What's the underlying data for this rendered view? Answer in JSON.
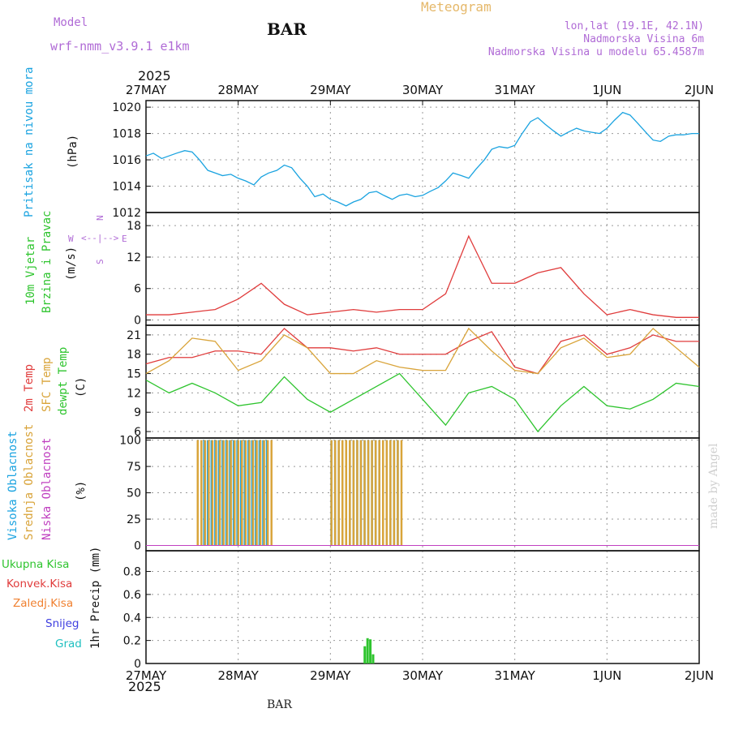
{
  "header": {
    "model_label": "Model",
    "model_name": "wrf-nmm_v3.9.1  e1km",
    "title": "BAR",
    "meteogram": "Meteogram",
    "lonlat": "lon,lat (19.1E, 42.1N)",
    "altitude": "Nadmorska Visina 6m",
    "model_altitude": "Nadmorska Visina u modelu 65.4587m",
    "year": "2025",
    "footer_station": "BAR",
    "credit": "made by Angel"
  },
  "colors": {
    "pressure": "#1aa3e0",
    "temp2m": "#e03c3c",
    "sfc": "#d9a43a",
    "dewpt": "#2ec42e",
    "high_cloud": "#1aa3e0",
    "mid_cloud": "#d9a43a",
    "low_cloud": "#c040c0",
    "total_precip": "#2ec42e",
    "conv_precip": "#e03c3c",
    "freezing": "#f08030",
    "snow": "#4040e0",
    "hail": "#20c0c0",
    "wind_speed": "#e03c3c"
  },
  "chart_data": [
    {
      "type": "line",
      "panel": "pressure",
      "ylabel_name": "Pritisak na nivou mora",
      "ylabel_unit": "(hPa)",
      "x_ticks": [
        "27MAY",
        "28MAY",
        "29MAY",
        "30MAY",
        "31MAY",
        "1JUN",
        "2JUN"
      ],
      "ylim": [
        1012,
        1020.5
      ],
      "yticks": [
        1012,
        1014,
        1016,
        1018,
        1020
      ],
      "grid": true,
      "series": [
        {
          "x": [
            0,
            0.08,
            0.17,
            0.25,
            0.33,
            0.42,
            0.5,
            0.58,
            0.67,
            0.75,
            0.83,
            0.92,
            1.0,
            1.08,
            1.17,
            1.25,
            1.33,
            1.42,
            1.5,
            1.58,
            1.67,
            1.75,
            1.83,
            1.92,
            2.0,
            2.08,
            2.17,
            2.25,
            2.33,
            2.42,
            2.5,
            2.58,
            2.67,
            2.75,
            2.83,
            2.92,
            3.0,
            3.08,
            3.17,
            3.25,
            3.33,
            3.42,
            3.5,
            3.58,
            3.67,
            3.75,
            3.83,
            3.92,
            4.0,
            4.08,
            4.17,
            4.25,
            4.33,
            4.42,
            4.5,
            4.58,
            4.67,
            4.75,
            4.83,
            4.92,
            5.0,
            5.08,
            5.17,
            5.25,
            5.33,
            5.42,
            5.5,
            5.58,
            5.67,
            5.75,
            5.83,
            5.92,
            6.0
          ],
          "values": [
            1016.3,
            1016.5,
            1016.1,
            1016.3,
            1016.5,
            1016.7,
            1016.6,
            1016.0,
            1015.2,
            1015.0,
            1014.8,
            1014.9,
            1014.6,
            1014.4,
            1014.1,
            1014.7,
            1015.0,
            1015.2,
            1015.6,
            1015.4,
            1014.6,
            1014.0,
            1013.2,
            1013.4,
            1013.0,
            1012.8,
            1012.5,
            1012.8,
            1013.0,
            1013.5,
            1013.6,
            1013.3,
            1013.0,
            1013.3,
            1013.4,
            1013.2,
            1013.3,
            1013.6,
            1013.9,
            1014.4,
            1015.0,
            1014.8,
            1014.6,
            1015.3,
            1016.0,
            1016.8,
            1017.0,
            1016.9,
            1017.1,
            1018.0,
            1018.9,
            1019.2,
            1018.7,
            1018.2,
            1017.8,
            1018.1,
            1018.4,
            1018.2,
            1018.1,
            1018.0,
            1018.4,
            1019.0,
            1019.6,
            1019.4,
            1018.8,
            1018.1,
            1017.5,
            1017.4,
            1017.8,
            1017.9,
            1017.9,
            1018.0,
            1018.0
          ],
          "color_key": "pressure"
        }
      ]
    },
    {
      "type": "line",
      "panel": "wind",
      "ylabel_name": "10m Vjetar",
      "ylabel_name2": "Brzina i Pravac",
      "ylabel_unit": "(m/s)",
      "compass_labels": {
        "n": "N",
        "w": "W",
        "e": "E",
        "s": "S"
      },
      "ylim": [
        -1,
        20.5
      ],
      "yticks": [
        0,
        6,
        12,
        18
      ],
      "grid": true,
      "series": [
        {
          "name": "wind speed",
          "x": [
            0,
            0.25,
            0.5,
            0.75,
            1.0,
            1.25,
            1.5,
            1.75,
            2.0,
            2.25,
            2.5,
            2.75,
            3.0,
            3.25,
            3.5,
            3.75,
            4.0,
            4.25,
            4.5,
            4.75,
            5.0,
            5.25,
            5.5,
            5.75,
            6.0
          ],
          "values": [
            1,
            1,
            1.5,
            2,
            4,
            7,
            3,
            1,
            1.5,
            2,
            1.5,
            2,
            2,
            5,
            16,
            7,
            7,
            9,
            10,
            5,
            1,
            2,
            1,
            0.5,
            0.5
          ],
          "color_key": "wind_speed"
        }
      ]
    },
    {
      "type": "line",
      "panel": "temperature",
      "ylabel_names": [
        "2m Temp",
        "SFC Temp",
        "dewpt Temp"
      ],
      "ylabel_unit": "(C)",
      "ylim": [
        5,
        22.5
      ],
      "yticks": [
        6,
        9,
        12,
        15,
        18,
        21
      ],
      "grid": true,
      "series": [
        {
          "name": "2m Temp",
          "color_key": "temp2m",
          "x": [
            0,
            0.25,
            0.5,
            0.75,
            1.0,
            1.25,
            1.5,
            1.75,
            2.0,
            2.25,
            2.5,
            2.75,
            3.0,
            3.25,
            3.5,
            3.75,
            4.0,
            4.25,
            4.5,
            4.75,
            5.0,
            5.25,
            5.5,
            5.75,
            6.0
          ],
          "values": [
            16.5,
            17.5,
            17.5,
            18.5,
            18.5,
            18,
            22,
            19,
            19,
            18.5,
            19,
            18,
            18,
            18,
            20,
            21.5,
            16,
            15,
            20,
            21,
            18,
            19,
            21,
            20,
            20
          ]
        },
        {
          "name": "SFC Temp",
          "color_key": "sfc",
          "x": [
            0,
            0.25,
            0.5,
            0.75,
            1.0,
            1.25,
            1.5,
            1.75,
            2.0,
            2.25,
            2.5,
            2.75,
            3.0,
            3.25,
            3.5,
            3.75,
            4.0,
            4.25,
            4.5,
            4.75,
            5.0,
            5.25,
            5.5,
            5.75,
            6.0
          ],
          "values": [
            15,
            17,
            20.5,
            20,
            15.5,
            17,
            21,
            19,
            15,
            15,
            17,
            16,
            15.5,
            15.5,
            22,
            18.5,
            15.5,
            15,
            19,
            20.5,
            17.5,
            18,
            22,
            19,
            16
          ]
        },
        {
          "name": "dewpt Temp",
          "color_key": "dewpt",
          "x": [
            0,
            0.25,
            0.5,
            0.75,
            1.0,
            1.25,
            1.5,
            1.75,
            2.0,
            2.25,
            2.5,
            2.75,
            3.0,
            3.25,
            3.5,
            3.75,
            4.0,
            4.25,
            4.5,
            4.75,
            5.0,
            5.25,
            5.5,
            5.75,
            6.0
          ],
          "values": [
            14,
            12,
            13.5,
            12,
            10,
            10.5,
            14.5,
            11,
            9,
            11,
            13,
            15,
            11,
            7,
            12,
            13,
            11,
            6,
            10,
            13,
            10,
            9.5,
            11,
            13.5,
            13
          ]
        }
      ]
    },
    {
      "type": "bar",
      "panel": "cloud",
      "ylabel_names": [
        "Visoka Oblacnost",
        "Srednja Oblacnost",
        "Niska Oblacnost"
      ],
      "ylabel_unit": "(%)",
      "ylim": [
        -5,
        102
      ],
      "yticks": [
        0,
        25,
        50,
        75,
        100
      ],
      "grid": true,
      "series": [
        {
          "name": "Visoka Oblacnost",
          "color_key": "high_cloud",
          "x_start": 0.62,
          "x_end": 1.32,
          "values": [
            100
          ]
        },
        {
          "name": "Srednja Oblacnost",
          "color_key": "mid_cloud",
          "x_start": 0.55,
          "x_end": 1.38,
          "values": [
            100
          ]
        },
        {
          "name": "Visoka Oblacnost",
          "color_key": "high_cloud",
          "x_start": 2.0,
          "x_end": 2.75,
          "values": [
            100
          ]
        },
        {
          "name": "Srednja Oblacnost",
          "color_key": "mid_cloud",
          "x_start": 2.0,
          "x_end": 2.8,
          "values": [
            100
          ]
        }
      ]
    },
    {
      "type": "bar",
      "panel": "precip",
      "ylabel_names": [
        "Ukupna Kisa",
        "Konvek.Kisa",
        "Zaledj.Kisa",
        "Snijeg",
        "Grad"
      ],
      "ylabel_unit": "1hr Precip (mm)",
      "ylim": [
        0,
        0.98
      ],
      "yticks": [
        0,
        0.2,
        0.4,
        0.6,
        0.8
      ],
      "grid": true,
      "series": [
        {
          "name": "Ukupna Kisa",
          "color_key": "total_precip",
          "x": [
            2.36,
            2.39,
            2.42,
            2.45
          ],
          "values": [
            0.15,
            0.22,
            0.21,
            0.08
          ]
        }
      ]
    }
  ]
}
